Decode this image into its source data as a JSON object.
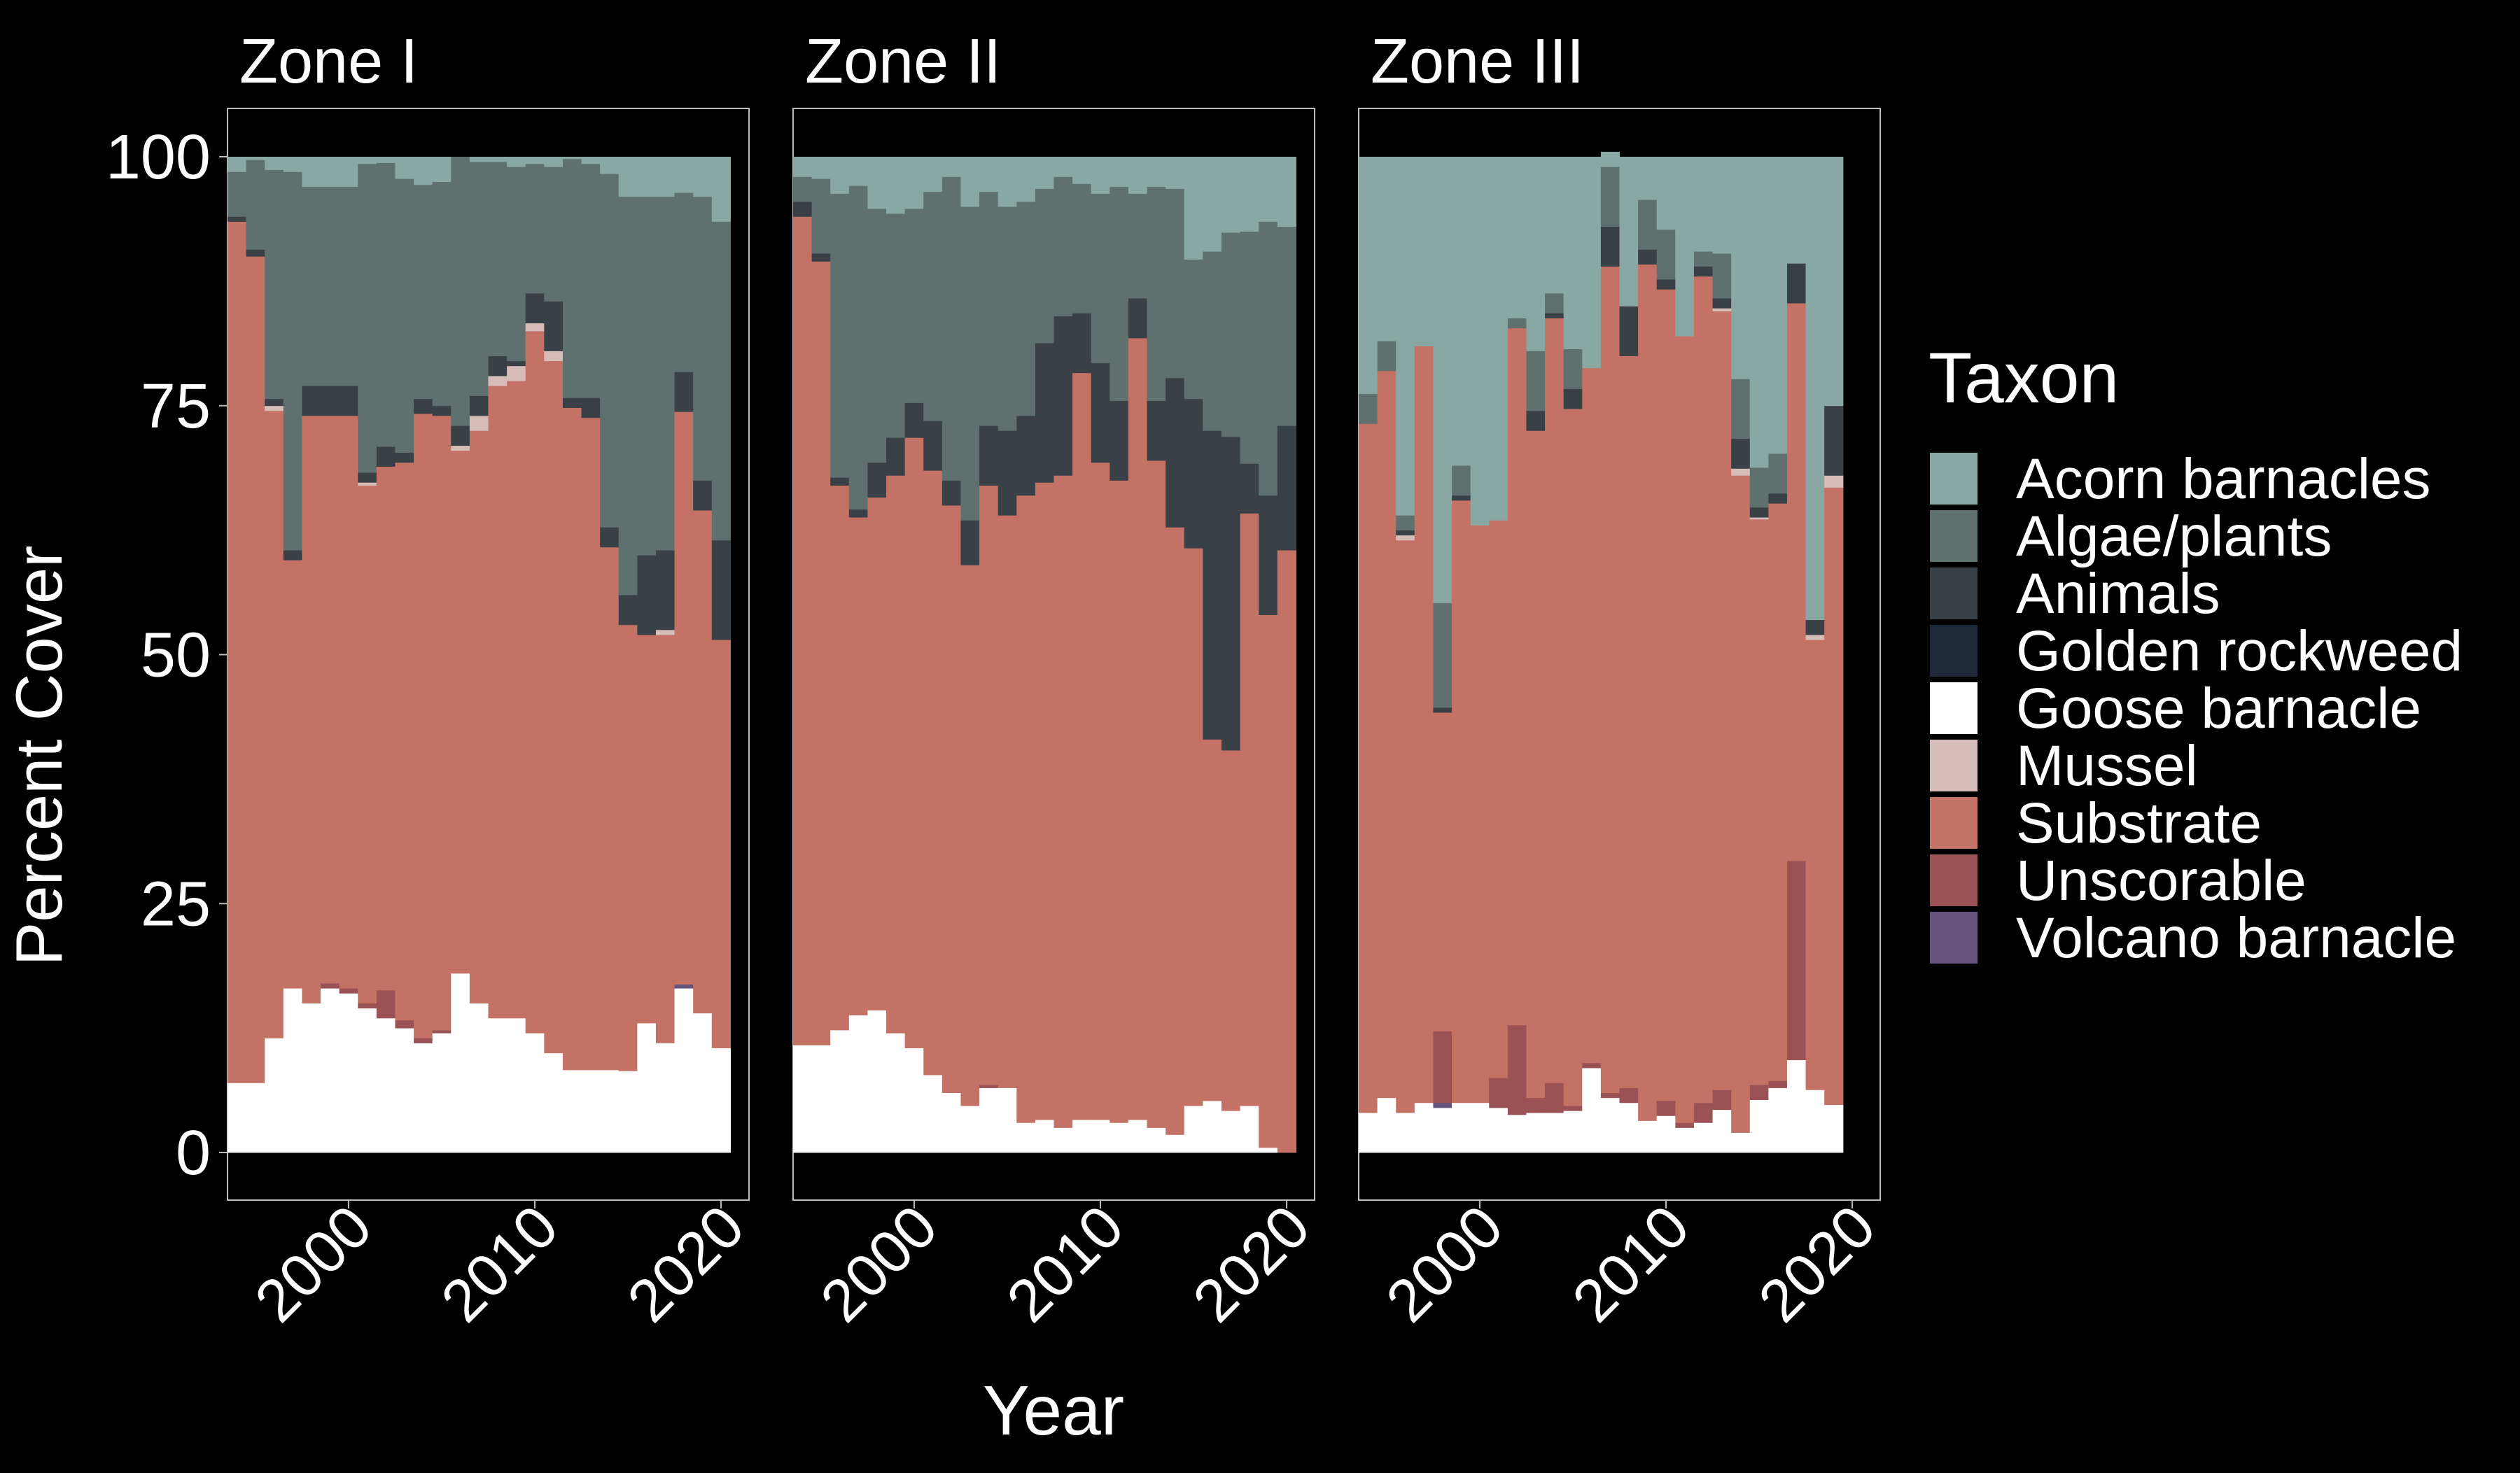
{
  "chart_data": {
    "type": "bar",
    "stacked": true,
    "xlabel": "Year",
    "ylabel": "Percent Cover",
    "ylim": [
      0,
      100
    ],
    "yticks": [
      0,
      25,
      50,
      75,
      100
    ],
    "xticks": [
      2000,
      2010,
      2020
    ],
    "xlim": [
      1993.5,
      2021.5
    ],
    "grid": false,
    "legend": {
      "title": "Taxon",
      "position": "right",
      "items": [
        {
          "name": "Acorn barnacles",
          "color": "#8aa8a3"
        },
        {
          "name": "Algae/plants",
          "color": "#5f716f"
        },
        {
          "name": "Animals",
          "color": "#3a4146"
        },
        {
          "name": "Golden rockweed",
          "color": "#1e2a3a"
        },
        {
          "name": "Goose barnacle",
          "color": "#ffffff"
        },
        {
          "name": "Mussel",
          "color": "#d6bdb9"
        },
        {
          "name": "Substrate",
          "color": "#c47265"
        },
        {
          "name": "Unscorable",
          "color": "#9a5254"
        },
        {
          "name": "Volcano barnacle",
          "color": "#685481"
        }
      ]
    },
    "stack_order": [
      "Goose barnacle",
      "Volcano barnacle",
      "Unscorable",
      "Substrate",
      "Mussel",
      "Golden rockweed",
      "Animals",
      "Algae/plants",
      "Acorn barnacles"
    ],
    "years": [
      1994,
      1995,
      1996,
      1997,
      1998,
      1999,
      2000,
      2001,
      2002,
      2003,
      2004,
      2005,
      2006,
      2007,
      2008,
      2009,
      2010,
      2011,
      2012,
      2013,
      2014,
      2015,
      2016,
      2017,
      2018,
      2019,
      2020
    ],
    "panels": [
      {
        "title": "Zone I",
        "series": [
          {
            "name": "Goose barnacle",
            "values": [
              7,
              7,
              11.5,
              16.5,
              15,
              16.5,
              16,
              14.5,
              13.5,
              12.5,
              11,
              12,
              18,
              15,
              13.5,
              13.5,
              12,
              10,
              8.3,
              8.3,
              8.3,
              8.2,
              13,
              11,
              16.5,
              14,
              10.5
            ]
          },
          {
            "name": "Volcano barnacle",
            "values": [
              0,
              0,
              0,
              0,
              0,
              0,
              0,
              0,
              0,
              0,
              0,
              0,
              0,
              0,
              0,
              0,
              0,
              0,
              0,
              0,
              0,
              0,
              0,
              0,
              0.4,
              0,
              0
            ]
          },
          {
            "name": "Unscorable",
            "values": [
              0,
              0,
              0,
              0,
              0,
              0.5,
              0.5,
              0.5,
              2.8,
              0.8,
              0.5,
              0.3,
              0,
              0,
              0,
              0,
              0,
              0,
              0,
              0,
              0,
              0,
              0,
              0,
              0,
              0,
              0
            ]
          },
          {
            "name": "Substrate",
            "values": [
              86.5,
              83,
              63,
              43,
              59,
              57,
              57.5,
              52,
              52.6,
              56,
              62.7,
              61.7,
              52.5,
              57.5,
              63.5,
              64,
              70.5,
              69.5,
              66.5,
              65.5,
              52.5,
              44.8,
              39,
              41,
              57.5,
              50.5,
              41
            ]
          },
          {
            "name": "Mussel",
            "values": [
              0,
              0,
              0.5,
              0,
              0,
              0,
              0,
              0.3,
              0,
              0,
              0,
              0,
              0.5,
              1.5,
              1,
              1.5,
              0.8,
              1,
              0,
              0,
              0,
              0,
              0,
              0.5,
              0,
              0,
              0
            ]
          },
          {
            "name": "Golden rockweed",
            "values": [
              0,
              0,
              0,
              0,
              0,
              0,
              0,
              0,
              0,
              0,
              0,
              0,
              0,
              0,
              0,
              0,
              0,
              0,
              0,
              0,
              0,
              0,
              0,
              0,
              0,
              0,
              0
            ]
          },
          {
            "name": "Animals",
            "values": [
              0.5,
              0.7,
              0.7,
              1,
              3,
              3,
              3,
              1,
              2,
              1,
              1.5,
              1,
              2,
              2,
              2,
              0.5,
              3,
              5,
              1,
              2,
              2,
              3,
              8,
              8,
              4,
              3,
              10
            ]
          },
          {
            "name": "Algae/plants",
            "values": [
              4.5,
              9,
              23,
              38,
              20,
              20,
              20,
              31,
              28.5,
              27.5,
              21.5,
              22.5,
              27,
              23.5,
              19.5,
              19.5,
              13,
              13.5,
              24,
              23.5,
              35.5,
              40,
              36,
              35.5,
              18,
              28.5,
              32
            ]
          },
          {
            "name": "Acorn barnacles",
            "values": [
              1.5,
              0.3,
              1.3,
              1.5,
              3,
              3,
              3,
              0.7,
              0.6,
              2.2,
              2.8,
              2.5,
              0,
              0.5,
              0.5,
              1,
              0.7,
              1,
              0.2,
              0.7,
              1.7,
              4,
              4,
              4,
              3.6,
              4,
              6.5
            ]
          }
        ]
      },
      {
        "title": "Zone II",
        "series": [
          {
            "name": "Goose barnacle",
            "values": [
              10.8,
              10.8,
              12.3,
              13.8,
              14.3,
              12,
              10.5,
              7.8,
              6,
              4.7,
              6.5,
              6.5,
              3,
              3.3,
              2.5,
              3.3,
              3.3,
              3,
              3.3,
              2.5,
              1.8,
              4.7,
              5.2,
              4.2,
              4.7,
              0.5,
              0
            ]
          },
          {
            "name": "Volcano barnacle",
            "values": [
              0,
              0,
              0,
              0,
              0,
              0,
              0,
              0,
              0,
              0,
              0,
              0,
              0,
              0,
              0,
              0,
              0,
              0,
              0,
              0,
              0,
              0,
              0,
              0,
              0,
              0,
              0
            ]
          },
          {
            "name": "Unscorable",
            "values": [
              0,
              0,
              0,
              0,
              0,
              0,
              0,
              0,
              0,
              0,
              0.3,
              0,
              0,
              0,
              0,
              0,
              0,
              0,
              0,
              0,
              0,
              0,
              0,
              0,
              0,
              0,
              0
            ]
          },
          {
            "name": "Substrate",
            "values": [
              83.2,
              78.7,
              54.7,
              50,
              51.5,
              56,
              61.3,
              60.7,
              59,
              54.3,
              60.2,
              57.5,
              63,
              64,
              65.5,
              75,
              66,
              64.5,
              78.5,
              67,
              61,
              56,
              36.3,
              36.2,
              59.5,
              53.5,
              60.5
            ]
          },
          {
            "name": "Mussel",
            "values": [
              0,
              0,
              0,
              0,
              0,
              0,
              0,
              0,
              0,
              0,
              0,
              0,
              0,
              0,
              0,
              0,
              0,
              0,
              0,
              0,
              0,
              0,
              0,
              0,
              0,
              0,
              0
            ]
          },
          {
            "name": "Golden rockweed",
            "values": [
              0,
              0,
              0,
              0,
              0,
              0,
              0,
              0,
              0,
              0,
              0,
              0,
              0,
              0,
              0,
              0,
              0,
              0,
              0,
              0,
              0,
              0,
              0,
              0,
              0,
              0,
              0
            ]
          },
          {
            "name": "Animals",
            "values": [
              1.5,
              0.8,
              0.8,
              0.8,
              3.5,
              3.8,
              3.5,
              5,
              2.5,
              4.5,
              6,
              8.5,
              8,
              14,
              16,
              6,
              10,
              8,
              4,
              6,
              15,
              15,
              31,
              31.5,
              5,
              12,
              12.5
            ]
          },
          {
            "name": "Algae/plants",
            "values": [
              2.5,
              7.5,
              28.5,
              32.5,
              25.5,
              22.5,
              19.5,
              23,
              30.5,
              31.5,
              23.5,
              22.5,
              21.5,
              15.5,
              14,
              13,
              17,
              21.5,
              10.5,
              21.5,
              19,
              14,
              18,
              20.5,
              23.3,
              27.5,
              20
            ]
          },
          {
            "name": "Acorn barnacles",
            "values": [
              2,
              2.2,
              3.7,
              2.9,
              5.2,
              5.7,
              5.2,
              3.5,
              2,
              5,
              3.5,
              5,
              4.5,
              3.2,
              2,
              2.7,
              3.7,
              3,
              3.7,
              3,
              3.2,
              10.3,
              9.5,
              7.6,
              7.5,
              6.5,
              7
            ]
          }
        ]
      },
      {
        "title": "Zone III",
        "series": [
          {
            "name": "Goose barnacle",
            "values": [
              4,
              5.5,
              4,
              5,
              4.5,
              5,
              5,
              4.5,
              3.8,
              4,
              4,
              4.2,
              8.5,
              5.5,
              5,
              3.2,
              3.7,
              2.5,
              3,
              4.3,
              2,
              5.3,
              6.5,
              9.3,
              6.3,
              4.8,
              0
            ]
          },
          {
            "name": "Volcano barnacle",
            "values": [
              0,
              0,
              0,
              0,
              0.5,
              0,
              0,
              0,
              0,
              0,
              0,
              0,
              0,
              0,
              0,
              0,
              0,
              0,
              0,
              0,
              0,
              0,
              0,
              0,
              0,
              0,
              0
            ]
          },
          {
            "name": "Unscorable",
            "values": [
              0,
              0,
              0,
              0,
              7.2,
              0,
              0,
              3,
              9,
              1.5,
              3,
              0.5,
              0.5,
              0.5,
              1.5,
              0,
              1.5,
              0.5,
              2,
              2,
              0,
              1.5,
              0.7,
              20,
              0,
              0,
              0
            ]
          },
          {
            "name": "Substrate",
            "values": [
              69.2,
              73,
              57.5,
              76,
              32,
              60.5,
              58,
              56,
              70,
              67,
              76.8,
              70,
              69.8,
              83,
              73.5,
              86,
              81.5,
              79,
              83,
              78.2,
              66,
              56.8,
              58,
              56,
              45.2,
              62,
              0
            ]
          },
          {
            "name": "Mussel",
            "values": [
              0,
              0,
              0.5,
              0,
              0,
              0,
              0,
              0,
              0,
              0,
              0,
              0,
              0,
              0,
              0,
              0,
              0,
              0,
              0,
              0.3,
              0.7,
              0.2,
              0,
              0,
              0.5,
              1.2,
              0
            ]
          },
          {
            "name": "Golden rockweed",
            "values": [
              0,
              0,
              0,
              0,
              0,
              0,
              0,
              0,
              0,
              0,
              0,
              0,
              0,
              0,
              0,
              0,
              0,
              0,
              0,
              0,
              0,
              0,
              0,
              0,
              0,
              0,
              0
            ]
          },
          {
            "name": "Animals",
            "values": [
              0,
              0,
              0.5,
              0,
              0.5,
              0.5,
              0,
              0,
              0,
              2,
              0.5,
              2,
              0,
              4,
              5,
              1.5,
              1,
              0,
              1,
              1,
              3,
              1,
              1,
              4,
              1.5,
              7,
              0
            ]
          },
          {
            "name": "Algae/plants",
            "values": [
              3,
              3,
              1.5,
              0,
              10.5,
              3,
              0,
              0,
              1,
              6,
              2,
              4,
              0,
              6,
              0,
              5,
              5,
              0,
              1.5,
              4.5,
              6,
              4,
              4,
              0,
              0,
              0,
              0
            ]
          },
          {
            "name": "Acorn barnacles",
            "values": [
              23.8,
              18.5,
              36,
              19,
              44.8,
              31,
              37,
              36.5,
              16.2,
              19.5,
              13.7,
              19.3,
              21.2,
              1.5,
              15,
              4.3,
              7.3,
              18,
              9.5,
              9.7,
              22.3,
              31.2,
              29.8,
              10.7,
              46.5,
              25,
              0
            ]
          }
        ]
      }
    ]
  }
}
